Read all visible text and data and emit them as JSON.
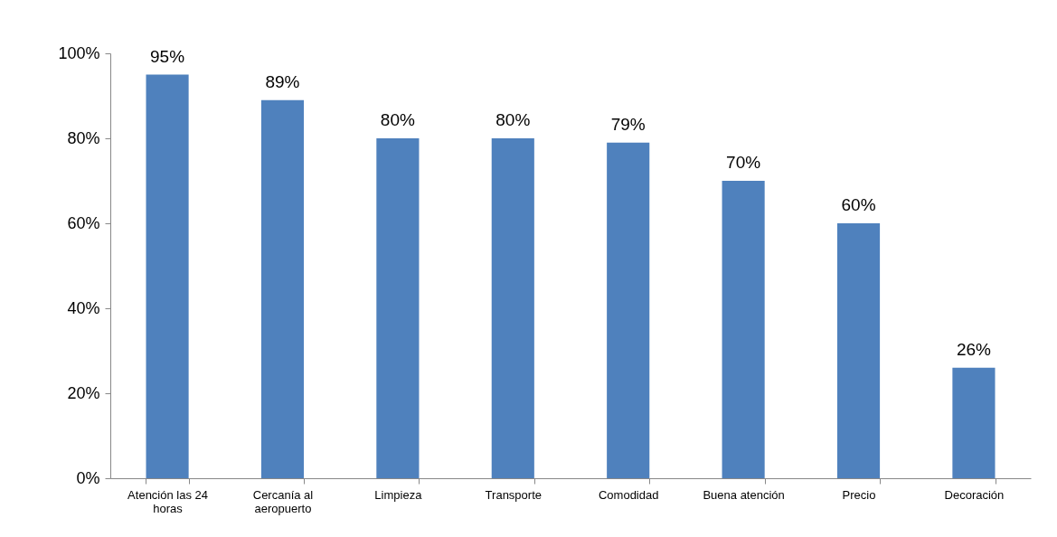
{
  "chart_data": {
    "type": "bar",
    "categories": [
      "Atención las 24 horas",
      "Cercanía al aeropuerto",
      "Limpieza",
      "Transporte",
      "Comodidad",
      "Buena atención",
      "Precio",
      "Decoración"
    ],
    "values": [
      95,
      89,
      80,
      80,
      79,
      70,
      60,
      26
    ],
    "value_labels": [
      "95%",
      "89%",
      "80%",
      "80%",
      "79%",
      "70%",
      "60%",
      "26%"
    ],
    "color": "#4f81bd",
    "ylim": [
      0,
      100
    ],
    "yticks": [
      {
        "value": 0,
        "label": "0%"
      },
      {
        "value": 20,
        "label": "20%"
      },
      {
        "value": 40,
        "label": "40%"
      },
      {
        "value": 60,
        "label": "60%"
      },
      {
        "value": 80,
        "label": "80%"
      },
      {
        "value": 100,
        "label": "100%"
      }
    ],
    "grid": false
  }
}
